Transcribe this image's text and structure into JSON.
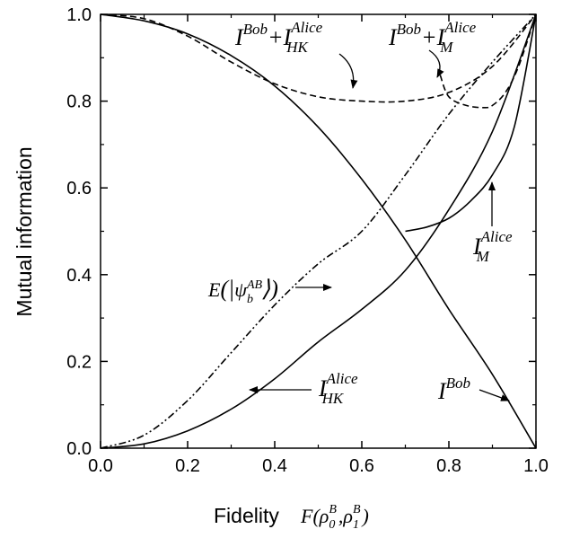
{
  "chart_data": {
    "type": "line",
    "xlabel": "Fidelity",
    "xlabel_math": {
      "F": "F",
      "rho": "ρ",
      "sup": "B",
      "sub0": "0",
      "sub1": "1"
    },
    "ylabel": "Mutual information",
    "xlim": [
      0,
      1
    ],
    "ylim": [
      0,
      1
    ],
    "x_ticks": [
      "0.0",
      "0.2",
      "0.4",
      "0.6",
      "0.8",
      "1.0"
    ],
    "y_ticks": [
      "0.0",
      "0.2",
      "0.4",
      "0.6",
      "0.8",
      "1.0"
    ],
    "grid": false,
    "legend": "none",
    "series": [
      {
        "key": "bob",
        "style": "solid",
        "x": [
          0,
          0.1,
          0.2,
          0.3,
          0.4,
          0.5,
          0.6,
          0.7,
          0.8,
          0.9,
          1.0
        ],
        "y": [
          1.0,
          0.985,
          0.955,
          0.905,
          0.835,
          0.74,
          0.62,
          0.48,
          0.32,
          0.17,
          0.0
        ]
      },
      {
        "key": "ihk",
        "style": "solid",
        "x": [
          0,
          0.1,
          0.2,
          0.3,
          0.4,
          0.5,
          0.6,
          0.7,
          0.8,
          0.9,
          1.0
        ],
        "y": [
          0,
          0.01,
          0.04,
          0.09,
          0.16,
          0.245,
          0.32,
          0.41,
          0.55,
          0.73,
          1.0
        ]
      },
      {
        "key": "ent",
        "style": "dashdotdot",
        "x": [
          0,
          0.1,
          0.2,
          0.3,
          0.4,
          0.5,
          0.6,
          0.7,
          0.8,
          0.9,
          1.0
        ],
        "y": [
          0,
          0.03,
          0.11,
          0.22,
          0.33,
          0.425,
          0.5,
          0.63,
          0.77,
          0.89,
          1.0
        ]
      },
      {
        "key": "im",
        "style": "solid",
        "x": [
          0.7,
          0.75,
          0.8,
          0.85,
          0.9,
          0.95,
          1.0
        ],
        "y": [
          0.5,
          0.51,
          0.53,
          0.57,
          0.63,
          0.74,
          1.0
        ]
      },
      {
        "key": "sum_hk",
        "style": "dashed",
        "x": [
          0,
          0.1,
          0.2,
          0.3,
          0.4,
          0.5,
          0.6,
          0.7,
          0.8,
          0.9,
          1.0
        ],
        "y": [
          1.0,
          0.99,
          0.95,
          0.89,
          0.84,
          0.81,
          0.8,
          0.8,
          0.82,
          0.88,
          1.0
        ]
      },
      {
        "key": "sum_m",
        "style": "dashed",
        "x": [
          0.78,
          0.8,
          0.84,
          0.88,
          0.9,
          0.93,
          0.96,
          1.0
        ],
        "y": [
          0.86,
          0.81,
          0.79,
          0.785,
          0.79,
          0.82,
          0.88,
          1.0
        ]
      }
    ],
    "annotations": {
      "bob_label": {
        "base": "I",
        "sup": "Bob"
      },
      "ihk_label": {
        "base": "I",
        "sup": "Alice",
        "sub": "HK"
      },
      "im_label": {
        "base": "I",
        "sup": "Alice",
        "sub": "M"
      },
      "ent_label": {
        "E": "E",
        "psi": "ψ",
        "sup": "AB",
        "sub": "b"
      },
      "sum_hk_label": {
        "base1": "I",
        "sup1": "Bob",
        "plus": "+",
        "base2": "I",
        "sup2": "Alice",
        "sub2": "HK"
      },
      "sum_m_label": {
        "base1": "I",
        "sup1": "Bob",
        "plus": "+",
        "base2": "I",
        "sup2": "Alice",
        "sub2": "M"
      }
    }
  }
}
